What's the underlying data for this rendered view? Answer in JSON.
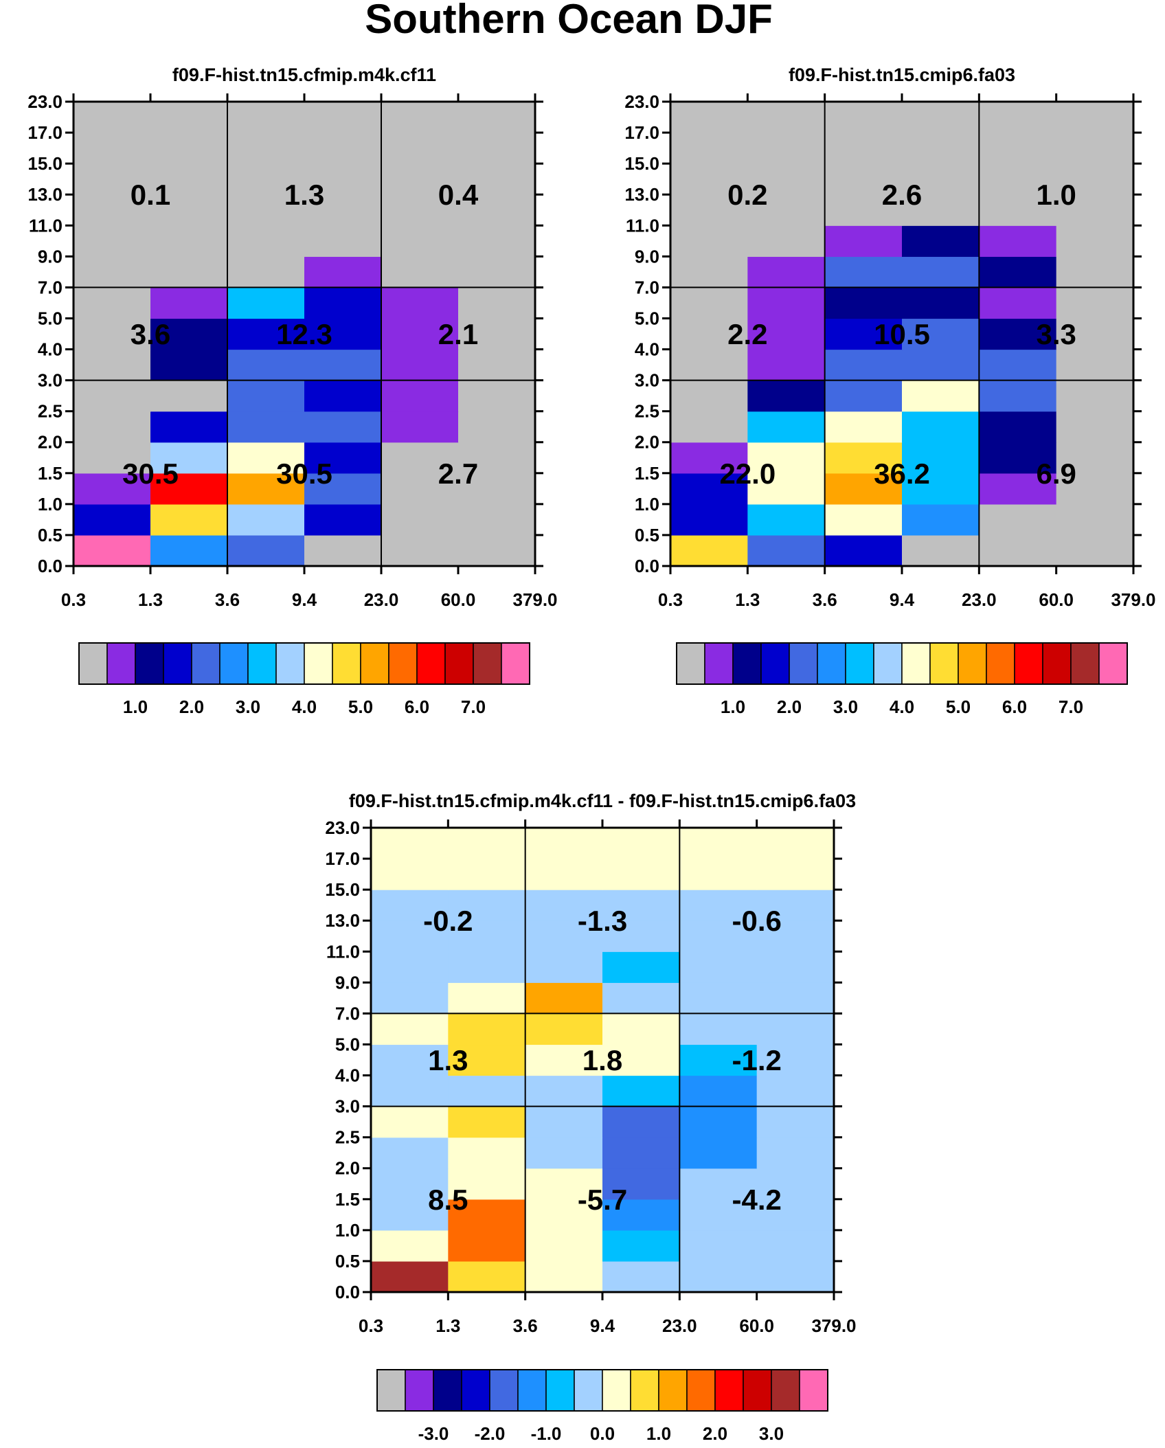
{
  "title": "Southern Ocean DJF",
  "palette": {
    "seq": [
      "#c0c0c0",
      "#8a2be2",
      "#00008b",
      "#0000cd",
      "#4169e1",
      "#1e90ff",
      "#00bfff",
      "#a3d1ff",
      "#ffffd0",
      "#ffdd33",
      "#ffa500",
      "#ff6a00",
      "#ff0000",
      "#cd0000",
      "#a52a2a",
      "#ff69b4"
    ],
    "labelbar_seq": [
      "1.0",
      "2.0",
      "3.0",
      "4.0",
      "5.0",
      "6.0",
      "7.0"
    ],
    "labelbar_diff": [
      "-3.0",
      "-2.0",
      "-1.0",
      "0.0",
      "1.0",
      "2.0",
      "3.0"
    ]
  },
  "axes": {
    "x_ticks": [
      "0.3",
      "1.3",
      "3.6",
      "9.4",
      "23.0",
      "60.0",
      "379.0"
    ],
    "y_ticks": [
      "0.0",
      "0.5",
      "1.0",
      "1.5",
      "2.0",
      "2.5",
      "3.0",
      "4.0",
      "5.0",
      "7.0",
      "9.0",
      "11.0",
      "13.0",
      "15.0",
      "17.0",
      "23.0"
    ]
  },
  "chart_data": [
    {
      "type": "heatmap",
      "title": "f09.F-hist.tn15.cfmip.m4k.cf11",
      "description": "color class index per cell (0 = grey / below range); rows bottom-to-top, cols left-to-right",
      "grid": [
        [
          15,
          5,
          4,
          0,
          0,
          0
        ],
        [
          3,
          9,
          7,
          3,
          0,
          0
        ],
        [
          1,
          12,
          10,
          4,
          0,
          0
        ],
        [
          0,
          7,
          8,
          3,
          0,
          0
        ],
        [
          0,
          3,
          4,
          4,
          1,
          0
        ],
        [
          0,
          0,
          4,
          3,
          1,
          0
        ],
        [
          0,
          2,
          4,
          4,
          1,
          0
        ],
        [
          0,
          2,
          3,
          3,
          1,
          0
        ],
        [
          0,
          1,
          6,
          3,
          1,
          0
        ],
        [
          0,
          0,
          0,
          1,
          0,
          0
        ],
        [
          0,
          0,
          0,
          0,
          0,
          0
        ],
        [
          0,
          0,
          0,
          0,
          0,
          0
        ],
        [
          0,
          0,
          0,
          0,
          0,
          0
        ],
        [
          0,
          0,
          0,
          0,
          0,
          0
        ],
        [
          0,
          0,
          0,
          0,
          0,
          0
        ]
      ],
      "regions": [
        {
          "label": "0.1",
          "col": 1,
          "row": 12
        },
        {
          "label": "1.3",
          "col": 3,
          "row": 12
        },
        {
          "label": "0.4",
          "col": 5,
          "row": 12
        },
        {
          "label": "3.6",
          "col": 1,
          "row": 7.5
        },
        {
          "label": "12.3",
          "col": 3,
          "row": 7.5
        },
        {
          "label": "2.1",
          "col": 5,
          "row": 7.5
        },
        {
          "label": "30.5",
          "col": 1,
          "row": 3
        },
        {
          "label": "30.5",
          "col": 3,
          "row": 3
        },
        {
          "label": "2.7",
          "col": 5,
          "row": 3
        }
      ]
    },
    {
      "type": "heatmap",
      "title": "f09.F-hist.tn15.cmip6.fa03",
      "grid": [
        [
          9,
          4,
          3,
          0,
          0,
          0
        ],
        [
          3,
          6,
          8,
          5,
          0,
          0
        ],
        [
          3,
          8,
          10,
          6,
          1,
          0
        ],
        [
          1,
          8,
          9,
          6,
          2,
          0
        ],
        [
          0,
          6,
          8,
          6,
          2,
          0
        ],
        [
          0,
          2,
          4,
          8,
          4,
          0
        ],
        [
          0,
          1,
          4,
          4,
          4,
          0
        ],
        [
          0,
          1,
          3,
          4,
          2,
          0
        ],
        [
          0,
          1,
          2,
          2,
          1,
          0
        ],
        [
          0,
          1,
          4,
          4,
          2,
          0
        ],
        [
          0,
          0,
          1,
          2,
          1,
          0
        ],
        [
          0,
          0,
          0,
          0,
          0,
          0
        ],
        [
          0,
          0,
          0,
          0,
          0,
          0
        ],
        [
          0,
          0,
          0,
          0,
          0,
          0
        ],
        [
          0,
          0,
          0,
          0,
          0,
          0
        ]
      ],
      "regions": [
        {
          "label": "0.2",
          "col": 1,
          "row": 12
        },
        {
          "label": "2.6",
          "col": 3,
          "row": 12
        },
        {
          "label": "1.0",
          "col": 5,
          "row": 12
        },
        {
          "label": "2.2",
          "col": 1,
          "row": 7.5
        },
        {
          "label": "10.5",
          "col": 3,
          "row": 7.5
        },
        {
          "label": "3.3",
          "col": 5,
          "row": 7.5
        },
        {
          "label": "22.0",
          "col": 1,
          "row": 3
        },
        {
          "label": "36.2",
          "col": 3,
          "row": 3
        },
        {
          "label": "6.9",
          "col": 5,
          "row": 3
        }
      ]
    },
    {
      "type": "heatmap",
      "title": "f09.F-hist.tn15.cfmip.m4k.cf11 - f09.F-hist.tn15.cmip6.fa03",
      "grid": [
        [
          14,
          9,
          8,
          7,
          7,
          7
        ],
        [
          8,
          11,
          8,
          6,
          7,
          7
        ],
        [
          7,
          11,
          8,
          5,
          7,
          7
        ],
        [
          7,
          8,
          8,
          4,
          7,
          7
        ],
        [
          7,
          8,
          7,
          4,
          5,
          7
        ],
        [
          8,
          9,
          7,
          4,
          5,
          7
        ],
        [
          7,
          7,
          7,
          6,
          5,
          7
        ],
        [
          7,
          9,
          8,
          8,
          6,
          7
        ],
        [
          8,
          9,
          9,
          8,
          7,
          7
        ],
        [
          7,
          8,
          10,
          7,
          7,
          7
        ],
        [
          7,
          7,
          7,
          6,
          7,
          7
        ],
        [
          7,
          7,
          7,
          7,
          7,
          7
        ],
        [
          7,
          7,
          7,
          7,
          7,
          7
        ],
        [
          8,
          8,
          8,
          8,
          8,
          8
        ],
        [
          8,
          8,
          8,
          8,
          8,
          8
        ]
      ],
      "regions": [
        {
          "label": "-0.2",
          "col": 1,
          "row": 12
        },
        {
          "label": "-1.3",
          "col": 3,
          "row": 12
        },
        {
          "label": "-0.6",
          "col": 5,
          "row": 12
        },
        {
          "label": "1.3",
          "col": 1,
          "row": 7.5
        },
        {
          "label": "1.8",
          "col": 3,
          "row": 7.5
        },
        {
          "label": "-1.2",
          "col": 5,
          "row": 7.5
        },
        {
          "label": "8.5",
          "col": 1,
          "row": 3
        },
        {
          "label": "-5.7",
          "col": 3,
          "row": 3
        },
        {
          "label": "-4.2",
          "col": 5,
          "row": 3
        }
      ]
    }
  ]
}
